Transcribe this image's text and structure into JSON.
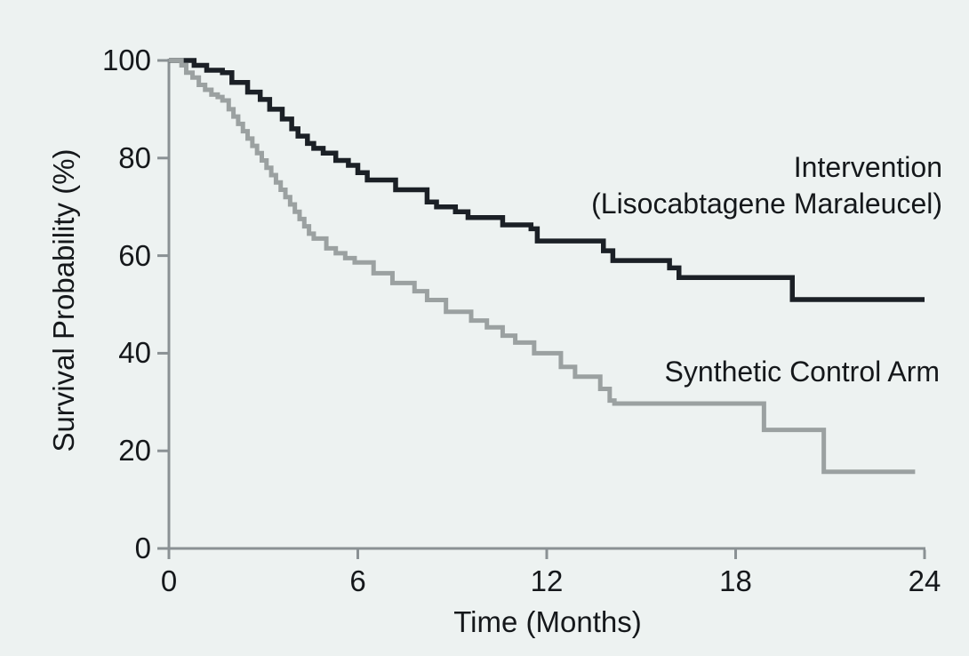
{
  "colors": {
    "background": "#edf2f1",
    "axis": "#8a9194",
    "text": "#15181b"
  },
  "chart_data": {
    "type": "line",
    "subtype": "kaplan-meier-step",
    "title": "",
    "xlabel": "Time (Months)",
    "ylabel": "Survival Probability (%)",
    "xlim": [
      0,
      24
    ],
    "ylim": [
      0,
      100
    ],
    "x_ticks": [
      0,
      6,
      12,
      18,
      24
    ],
    "y_ticks": [
      0,
      20,
      40,
      60,
      80,
      100
    ],
    "grid": false,
    "legend_position": "inline-annotations-right",
    "series": [
      {
        "name": "Intervention (Lisocabtagene Maraleucel)",
        "label_lines": [
          "Intervention",
          "(Lisocabtagene Maraleucel)"
        ],
        "color": "#1b2026",
        "stroke_width": 5.5,
        "points": [
          [
            0,
            100
          ],
          [
            0.8,
            99
          ],
          [
            1.2,
            98
          ],
          [
            1.7,
            97.5
          ],
          [
            2.0,
            95.5
          ],
          [
            2.5,
            93.5
          ],
          [
            2.9,
            92
          ],
          [
            3.2,
            90
          ],
          [
            3.6,
            88
          ],
          [
            3.9,
            86
          ],
          [
            4.1,
            84.5
          ],
          [
            4.4,
            83
          ],
          [
            4.6,
            82
          ],
          [
            4.9,
            81
          ],
          [
            5.3,
            79.5
          ],
          [
            5.7,
            78.5
          ],
          [
            6.0,
            77
          ],
          [
            6.3,
            75.5
          ],
          [
            7.2,
            73.5
          ],
          [
            8.2,
            71
          ],
          [
            8.5,
            70
          ],
          [
            9.1,
            69
          ],
          [
            9.5,
            67.8
          ],
          [
            10.6,
            66.3
          ],
          [
            11.5,
            65.5
          ],
          [
            11.7,
            63
          ],
          [
            13.8,
            61
          ],
          [
            14.1,
            59
          ],
          [
            15.9,
            57.5
          ],
          [
            16.2,
            55.5
          ],
          [
            19.8,
            51
          ],
          [
            24,
            51
          ]
        ]
      },
      {
        "name": "Synthetic Control Arm",
        "label_lines": [
          "Synthetic Control Arm"
        ],
        "color": "#9ba1a1",
        "stroke_width": 5,
        "points": [
          [
            0,
            100
          ],
          [
            0.4,
            99
          ],
          [
            0.55,
            97.5
          ],
          [
            0.75,
            96.5
          ],
          [
            0.95,
            95
          ],
          [
            1.15,
            94
          ],
          [
            1.35,
            93
          ],
          [
            1.55,
            92.5
          ],
          [
            1.7,
            91.8
          ],
          [
            1.9,
            90
          ],
          [
            2.05,
            88.5
          ],
          [
            2.2,
            87
          ],
          [
            2.35,
            85.5
          ],
          [
            2.5,
            84
          ],
          [
            2.65,
            82.5
          ],
          [
            2.8,
            81
          ],
          [
            2.95,
            79.5
          ],
          [
            3.1,
            78
          ],
          [
            3.25,
            76.5
          ],
          [
            3.4,
            75
          ],
          [
            3.55,
            73.5
          ],
          [
            3.7,
            72
          ],
          [
            3.85,
            70.5
          ],
          [
            4.0,
            69
          ],
          [
            4.15,
            67.5
          ],
          [
            4.3,
            66
          ],
          [
            4.45,
            64.5
          ],
          [
            4.6,
            63.5
          ],
          [
            5.0,
            61.5
          ],
          [
            5.3,
            60.5
          ],
          [
            5.6,
            59.5
          ],
          [
            5.9,
            58.6
          ],
          [
            6.5,
            56.4
          ],
          [
            7.1,
            54.4
          ],
          [
            7.8,
            52.7
          ],
          [
            8.2,
            50.9
          ],
          [
            8.8,
            48.5
          ],
          [
            9.6,
            46.7
          ],
          [
            10.1,
            45.3
          ],
          [
            10.6,
            43.6
          ],
          [
            11.0,
            42.2
          ],
          [
            11.6,
            40
          ],
          [
            12.45,
            37.2
          ],
          [
            12.9,
            35.2
          ],
          [
            13.7,
            32.7
          ],
          [
            14.0,
            30.3
          ],
          [
            14.15,
            29.7
          ],
          [
            18.9,
            24.3
          ],
          [
            20.8,
            15.7
          ],
          [
            23.7,
            15.7
          ]
        ]
      }
    ]
  }
}
